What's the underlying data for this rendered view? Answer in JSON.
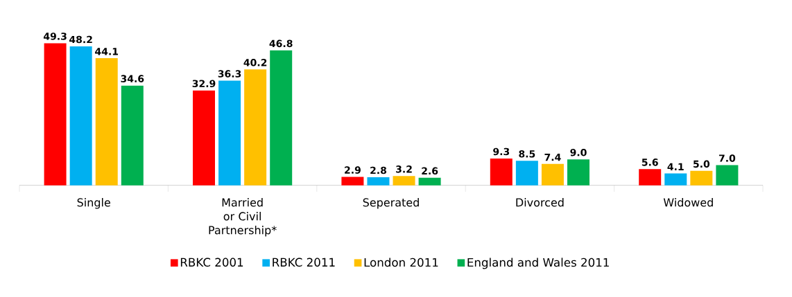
{
  "chart_data": {
    "type": "bar",
    "categories": [
      "Single",
      "Married or Civil Partnership*",
      "Seperated",
      "Divorced",
      "Widowed"
    ],
    "series": [
      {
        "name": "RBKC 2001",
        "color": "#ff0000",
        "values": [
          49.3,
          32.9,
          2.9,
          9.3,
          5.6
        ],
        "value_labels": [
          "49.3",
          "32.9",
          "2.9",
          "9.3",
          "5.6"
        ]
      },
      {
        "name": "RBKC 2011",
        "color": "#00b0f0",
        "values": [
          48.2,
          36.3,
          2.8,
          8.5,
          4.1
        ],
        "value_labels": [
          "48.2",
          "36.3",
          "2.8",
          "8.5",
          "4.1"
        ]
      },
      {
        "name": "London 2011",
        "color": "#ffc000",
        "values": [
          44.1,
          40.2,
          3.2,
          7.4,
          5.0
        ],
        "value_labels": [
          "44.1",
          "40.2",
          "3.2",
          "7.4",
          "5.0"
        ]
      },
      {
        "name": "England and Wales 2011",
        "color": "#00b050",
        "values": [
          34.6,
          46.8,
          2.6,
          9.0,
          7.0
        ],
        "value_labels": [
          "34.6",
          "46.8",
          "2.6",
          "9.0",
          "7.0"
        ]
      }
    ],
    "legend": "bottom"
  }
}
